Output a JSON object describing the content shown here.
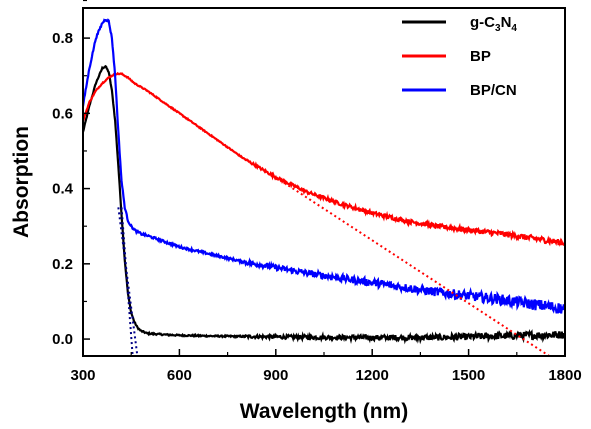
{
  "chart_data": {
    "type": "line",
    "xlabel": "Wavelength (nm)",
    "ylabel": "Absorption",
    "xlim": [
      300,
      1800
    ],
    "ylim": [
      -0.045,
      0.88
    ],
    "xticks": [
      "300",
      "600",
      "900",
      "1200",
      "1500",
      "1800"
    ],
    "xtick_values": [
      300,
      600,
      900,
      1200,
      1500,
      1800
    ],
    "yticks": [
      "0.0",
      "0.2",
      "0.4",
      "0.6",
      "0.8"
    ],
    "ytick_values": [
      0.0,
      0.2,
      0.4,
      0.6,
      0.8
    ],
    "grid": false,
    "legend_position": "top-right",
    "series": [
      {
        "name": "g-C3N4",
        "legend_parts": [
          "g-C",
          "3",
          "N",
          "4"
        ],
        "color": "#000000",
        "x": [
          300,
          320,
          340,
          360,
          370,
          380,
          390,
          400,
          410,
          420,
          430,
          440,
          450,
          460,
          470,
          480,
          500,
          550,
          600,
          700,
          800,
          900,
          1000,
          1200,
          1400,
          1600,
          1800
        ],
        "y": [
          0.55,
          0.62,
          0.68,
          0.72,
          0.725,
          0.71,
          0.66,
          0.58,
          0.46,
          0.33,
          0.21,
          0.12,
          0.07,
          0.045,
          0.03,
          0.022,
          0.015,
          0.012,
          0.01,
          0.008,
          0.007,
          0.006,
          0.005,
          0.004,
          0.004,
          0.008,
          0.012
        ]
      },
      {
        "name": "BP",
        "color": "#ff0000",
        "x": [
          300,
          320,
          340,
          360,
          380,
          400,
          420,
          440,
          460,
          500,
          550,
          600,
          700,
          800,
          900,
          1000,
          1100,
          1200,
          1300,
          1400,
          1500,
          1600,
          1700,
          1800
        ],
        "y": [
          0.58,
          0.63,
          0.66,
          0.68,
          0.695,
          0.705,
          0.705,
          0.695,
          0.68,
          0.66,
          0.63,
          0.6,
          0.54,
          0.48,
          0.43,
          0.39,
          0.36,
          0.335,
          0.315,
          0.3,
          0.29,
          0.28,
          0.268,
          0.255
        ]
      },
      {
        "name": "BP/CN",
        "color": "#0000ff",
        "x": [
          300,
          320,
          340,
          360,
          370,
          380,
          390,
          400,
          410,
          420,
          430,
          440,
          450,
          460,
          480,
          500,
          600,
          700,
          800,
          900,
          1000,
          1200,
          1400,
          1600,
          1800
        ],
        "y": [
          0.62,
          0.72,
          0.8,
          0.84,
          0.85,
          0.845,
          0.8,
          0.7,
          0.55,
          0.42,
          0.35,
          0.315,
          0.3,
          0.29,
          0.28,
          0.275,
          0.245,
          0.225,
          0.205,
          0.19,
          0.175,
          0.15,
          0.125,
          0.105,
          0.08
        ]
      }
    ],
    "fit_lines": [
      {
        "series": "g-C3N4",
        "color": "#00008b",
        "style": "dotted",
        "x": [
          410,
          470
        ],
        "y": [
          0.35,
          -0.05
        ]
      },
      {
        "series": "BP/CN",
        "color": "#000080",
        "style": "dotted",
        "x": [
          420,
          455
        ],
        "y": [
          0.35,
          -0.05
        ]
      },
      {
        "series": "BP",
        "color": "#ff0000",
        "style": "dotted",
        "x": [
          900,
          1760
        ],
        "y": [
          0.43,
          -0.05
        ]
      }
    ]
  }
}
